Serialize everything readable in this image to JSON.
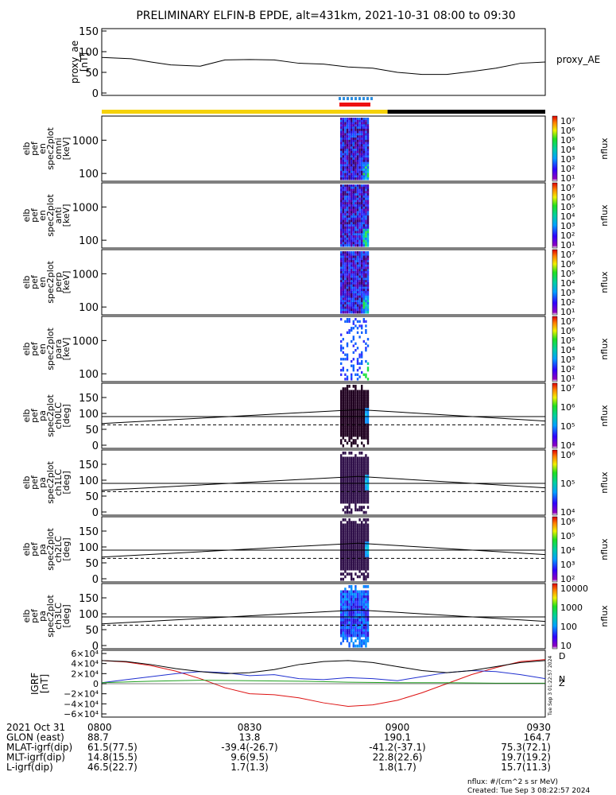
{
  "title": "PRELIMINARY ELFIN-B EPDE, alt=431km, 2021-10-31 08:00 to 09:30",
  "colors": {
    "bar_yellow": "#f5d20a",
    "bar_black": "#000000",
    "bar_red": "#ee1111",
    "bar_blue": "#2f8fe0",
    "bx": "#000000",
    "by": "#2030d0",
    "bz": "#20a020",
    "bmag": "#dd1111"
  },
  "chart_data": [
    {
      "type": "line",
      "panel": "proxy_ae",
      "ylabel": "proxy_ae\n[nT]",
      "legend": "proxy_AE",
      "ylim": [
        0,
        150
      ],
      "yticks": [
        "150",
        "100",
        "50",
        "0"
      ],
      "series": [
        {
          "name": "proxy_AE",
          "x": [
            "08:00",
            "08:06",
            "08:10",
            "08:14",
            "08:20",
            "08:25",
            "08:30",
            "08:35",
            "08:40",
            "08:45",
            "08:50",
            "08:55",
            "09:00",
            "09:05",
            "09:10",
            "09:15",
            "09:20",
            "09:25",
            "09:30"
          ],
          "values": [
            86,
            83,
            75,
            68,
            65,
            80,
            81,
            80,
            72,
            70,
            63,
            60,
            50,
            45,
            45,
            52,
            60,
            72,
            75
          ]
        }
      ]
    },
    {
      "type": "heatmap",
      "panel": "spec2plot omni",
      "ylabel": "elb\npef\nen\nspec2plot\nomni\n[keV]",
      "yscale": "log",
      "yticks": [
        "1000",
        "100"
      ],
      "zlabel": "nflux",
      "zticks": [
        "10⁷",
        "10⁶",
        "10⁵",
        "10⁴",
        "10³",
        "10²",
        "10¹"
      ],
      "time_range": [
        "08:47",
        "08:51"
      ]
    },
    {
      "type": "heatmap",
      "panel": "spec2plot anti",
      "ylabel": "elb\npef\nen\nspec2plot\nanti\n[keV]",
      "yscale": "log",
      "yticks": [
        "1000",
        "100"
      ],
      "zlabel": "nflux",
      "zticks": [
        "10⁷",
        "10⁶",
        "10⁵",
        "10⁴",
        "10³",
        "10²",
        "10¹"
      ],
      "time_range": [
        "08:47",
        "08:51"
      ]
    },
    {
      "type": "heatmap",
      "panel": "spec2plot perp",
      "ylabel": "elb\npef\nen\nspec2plot\nperp\n[keV]",
      "yscale": "log",
      "yticks": [
        "1000",
        "100"
      ],
      "zlabel": "nflux",
      "zticks": [
        "10⁷",
        "10⁶",
        "10⁵",
        "10⁴",
        "10³",
        "10²",
        "10¹"
      ],
      "time_range": [
        "08:47",
        "08:51"
      ]
    },
    {
      "type": "heatmap",
      "panel": "spec2plot para",
      "ylabel": "elb\npef\nen\nspec2plot\npara\n[keV]",
      "yscale": "log",
      "yticks": [
        "1000",
        "100"
      ],
      "zlabel": "nflux",
      "zticks": [
        "10⁷",
        "10⁶",
        "10⁵",
        "10⁴",
        "10³",
        "10²",
        "10¹"
      ],
      "time_range": [
        "08:47",
        "08:51"
      ]
    },
    {
      "type": "heatmap",
      "panel": "spec2plot ch0LC",
      "ylabel": "elb\npef\npa\nspec2plot\nch0LC\n[deg]",
      "ylim": [
        0,
        180
      ],
      "yticks": [
        "150",
        "100",
        "50",
        "0"
      ],
      "zlabel": "nflux",
      "zticks": [
        "10⁷",
        "10⁶",
        "10⁵",
        "10⁴"
      ]
    },
    {
      "type": "heatmap",
      "panel": "spec2plot ch1LC",
      "ylabel": "elb\npef\npa\nspec2plot\nch1LC\n[deg]",
      "ylim": [
        0,
        180
      ],
      "yticks": [
        "150",
        "100",
        "50",
        "0"
      ],
      "zlabel": "nflux",
      "zticks": [
        "10⁶",
        "10⁵",
        "10⁴"
      ]
    },
    {
      "type": "heatmap",
      "panel": "spec2plot ch2LC",
      "ylabel": "elb\npef\npa\nspec2plot\nch2LC\n[deg]",
      "ylim": [
        0,
        180
      ],
      "yticks": [
        "150",
        "100",
        "50",
        "0"
      ],
      "zlabel": "nflux",
      "zticks": [
        "10⁶",
        "10⁵",
        "10⁴",
        "10³",
        "10²"
      ]
    },
    {
      "type": "heatmap",
      "panel": "spec2plot ch3LC",
      "ylabel": "elb\npef\npa\nspec2plot\nch3LC\n[deg]",
      "ylim": [
        0,
        180
      ],
      "yticks": [
        "150",
        "100",
        "50",
        "0"
      ],
      "zlabel": "nflux",
      "zticks": [
        "10000",
        "1000",
        "100",
        "10"
      ]
    },
    {
      "type": "line",
      "panel": "IGRF",
      "ylabel": "IGRF\n[nT]",
      "ylim": [
        -60000,
        60000
      ],
      "yticks": [
        "6×10⁴",
        "4×10⁴",
        "2×10⁴",
        "0",
        "−2×10⁴",
        "−4×10⁴",
        "−6×10⁴"
      ],
      "legend": [
        "D",
        "N",
        "Z"
      ],
      "series": [
        {
          "name": "D",
          "x": [
            0,
            5,
            10,
            15,
            20,
            25,
            30,
            35,
            40,
            45,
            50,
            55,
            60,
            65,
            70,
            75,
            80,
            85,
            90
          ],
          "values": [
            46000,
            43000,
            36000,
            25000,
            10000,
            -8000,
            -20000,
            -22000,
            -28000,
            -38000,
            -45000,
            -42000,
            -33000,
            -18000,
            0,
            18000,
            32000,
            44000,
            48000
          ]
        },
        {
          "name": "N",
          "x": [
            0,
            5,
            10,
            15,
            20,
            25,
            30,
            35,
            40,
            45,
            50,
            55,
            60,
            65,
            70,
            75,
            80,
            85,
            90
          ],
          "values": [
            2000,
            8000,
            14000,
            20000,
            24000,
            22000,
            16000,
            18000,
            10000,
            8000,
            12000,
            10000,
            6000,
            14000,
            22000,
            26000,
            24000,
            18000,
            10000
          ]
        },
        {
          "name": "Z",
          "x": [
            0,
            10,
            20,
            30,
            40,
            50,
            60,
            70,
            80,
            90
          ],
          "values": [
            2000,
            5000,
            7000,
            6000,
            5000,
            3000,
            2000,
            2000,
            1000,
            1000
          ]
        },
        {
          "name": "X",
          "x": [
            0,
            5,
            10,
            15,
            20,
            25,
            30,
            35,
            40,
            45,
            50,
            55,
            60,
            65,
            70,
            75,
            80,
            85,
            90
          ],
          "values": [
            46000,
            44000,
            38000,
            30000,
            24000,
            20000,
            22000,
            28000,
            38000,
            44000,
            46000,
            42000,
            34000,
            26000,
            22000,
            26000,
            34000,
            42000,
            46000
          ]
        }
      ]
    }
  ],
  "axis": {
    "rows": [
      {
        "label": "2021 Oct 31",
        "values": [
          "0800",
          "0830",
          "0900",
          "0930"
        ]
      },
      {
        "label": "GLON (east)",
        "values": [
          "88.7",
          "13.8",
          "190.1",
          "164.7"
        ]
      },
      {
        "label": "MLAT-igrf(dip)",
        "values": [
          "61.5(77.5)",
          "-39.4(-26.7)",
          "-41.2(-37.1)",
          "75.3(72.1)"
        ]
      },
      {
        "label": "MLT-igrf(dip)",
        "values": [
          "14.8(15.5)",
          "9.6(9.5)",
          "22.8(22.6)",
          "19.7(19.2)"
        ]
      },
      {
        "label": "L-igrf(dip)",
        "values": [
          "46.5(22.7)",
          "1.7(1.3)",
          "1.8(1.7)",
          "15.7(11.3)"
        ]
      }
    ]
  },
  "footer": {
    "units": "nflux: #/(cm^2 s sr MeV)",
    "created": "Created: Tue Sep  3 08:22:57 2024",
    "side_stamp": "Tue Sep  3 01:22:57 2024"
  }
}
